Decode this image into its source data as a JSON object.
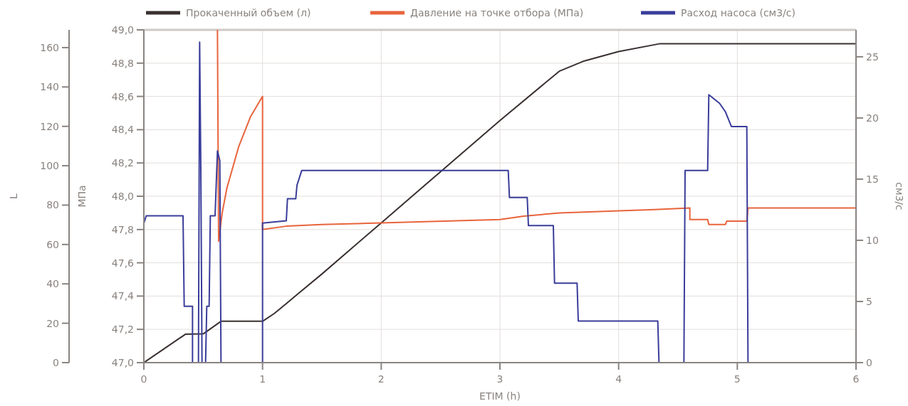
{
  "chart_data": {
    "type": "line",
    "xlabel": "ETIM (h)",
    "ylabel": "МПа",
    "y2label": "см3/с",
    "y3label": "L",
    "xlim": [
      0,
      6
    ],
    "xticks": [
      0,
      1,
      2,
      3,
      4,
      5,
      6
    ],
    "ylim": [
      47,
      49
    ],
    "yticks": [
      {
        "value": 47,
        "label": "47,0"
      },
      {
        "value": 47.2,
        "label": "47,2"
      },
      {
        "value": 47.4,
        "label": "47,4"
      },
      {
        "value": 47.6,
        "label": "47,6"
      },
      {
        "value": 47.8,
        "label": "47,8"
      },
      {
        "value": 48,
        "label": "48,0"
      },
      {
        "value": 48.2,
        "label": "48,2"
      },
      {
        "value": 48.4,
        "label": "48,4"
      },
      {
        "value": 48.6,
        "label": "48,6"
      },
      {
        "value": 48.8,
        "label": "48,8"
      },
      {
        "value": 49,
        "label": "49,0"
      }
    ],
    "y2lim": [
      0,
      27.2
    ],
    "y2ticks": [
      0,
      5,
      10,
      15,
      20,
      25
    ],
    "y3lim": [
      0,
      169
    ],
    "y3ticks": [
      0,
      20,
      40,
      60,
      80,
      100,
      120,
      140,
      160
    ],
    "grid": true,
    "legend": "top",
    "series": [
      {
        "name": "Прокаченный объем (л)",
        "color": "#3a3030",
        "axis": "y3",
        "x": [
          0,
          0.35,
          0.5,
          0.65,
          1.0,
          1.1,
          1.2,
          1.3,
          1.5,
          2.0,
          2.5,
          3.0,
          3.5,
          3.7,
          4.0,
          4.35,
          6.0
        ],
        "values": [
          0,
          14.4,
          14.6,
          21,
          21,
          25,
          30,
          35,
          45,
          71,
          97,
          123,
          148,
          153,
          158,
          162,
          162
        ]
      },
      {
        "name": "Давление на точке отбора (МПа)",
        "color": "#e8643c",
        "axis": "y",
        "x": [
          0.62,
          0.63,
          0.66,
          0.7,
          0.8,
          0.9,
          1.0,
          1.0,
          1.2,
          1.5,
          2.0,
          3.0,
          3.2,
          3.5,
          4.3,
          4.6,
          4.6,
          4.75,
          4.76,
          4.9,
          4.91,
          5.08,
          5.09,
          6.0
        ],
        "values": [
          49.0,
          47.73,
          47.9,
          48.05,
          48.3,
          48.48,
          48.6,
          47.8,
          47.82,
          47.83,
          47.84,
          47.86,
          47.88,
          47.9,
          47.92,
          47.93,
          47.86,
          47.86,
          47.83,
          47.83,
          47.85,
          47.85,
          47.93,
          47.93
        ]
      },
      {
        "name": "Расход насоса (см3/с)",
        "color": "#3a3d9a",
        "axis": "y2",
        "x": [
          0,
          0.02,
          0.33,
          0.34,
          0.41,
          0.41,
          0.46,
          0.47,
          0.48,
          0.49,
          0.52,
          0.53,
          0.55,
          0.56,
          0.6,
          0.62,
          0.64,
          0.65,
          0.66,
          1.0,
          1.0,
          1.2,
          1.21,
          1.28,
          1.29,
          1.33,
          3.07,
          3.08,
          3.23,
          3.24,
          3.45,
          3.46,
          3.65,
          3.66,
          4.33,
          4.34,
          4.55,
          4.56,
          4.75,
          4.76,
          4.85,
          4.9,
          4.95,
          5.08,
          5.09,
          6.0
        ],
        "values": [
          11.4,
          12.0,
          12.0,
          4.6,
          4.6,
          0,
          0,
          26.2,
          15.9,
          0,
          0,
          4.6,
          4.6,
          12.0,
          12.0,
          17.3,
          16.5,
          0,
          0,
          0,
          11.4,
          11.6,
          13.4,
          13.4,
          14.5,
          15.7,
          15.7,
          13.5,
          13.5,
          11.2,
          11.2,
          6.5,
          6.5,
          3.4,
          3.4,
          0,
          0,
          15.7,
          15.7,
          21.9,
          21.2,
          20.5,
          19.3,
          19.3,
          0,
          0
        ]
      }
    ]
  }
}
